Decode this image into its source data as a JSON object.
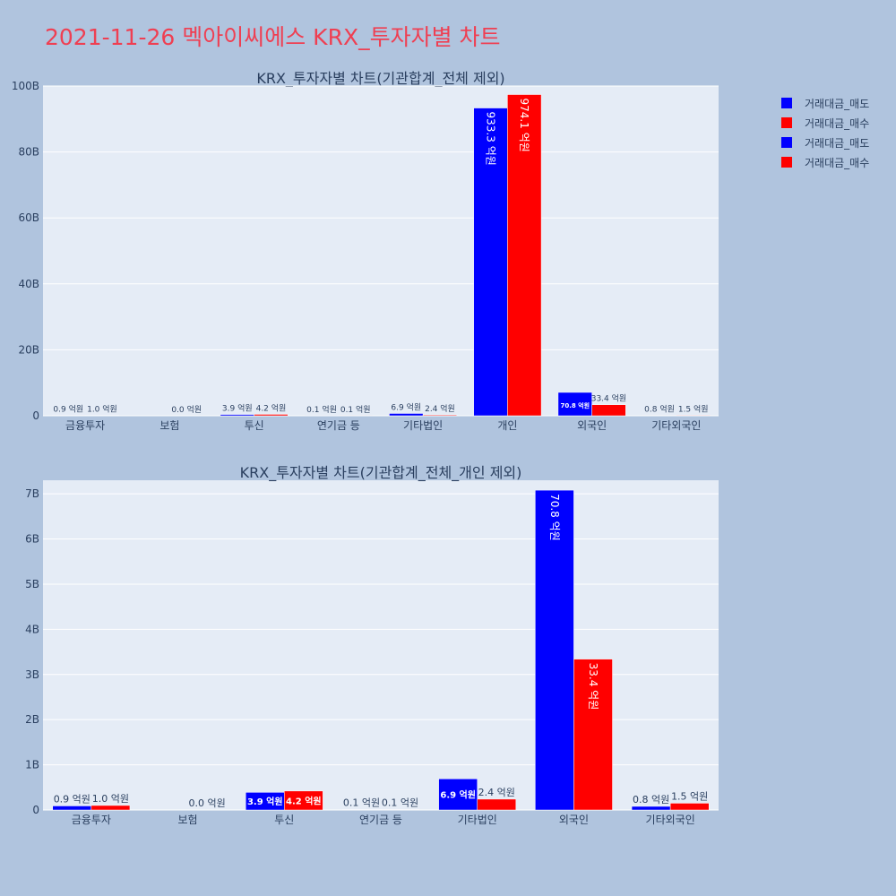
{
  "page": {
    "title": "2021-11-26 멕아이씨에스 KRX_투자자별 차트",
    "title_color": "#ef3f52",
    "background": "#b0c4de",
    "plot_background": "#e5ecf6"
  },
  "legend": {
    "placement": "top-right",
    "items": [
      {
        "label": "거래대금_매도",
        "color": "#0000ff"
      },
      {
        "label": "거래대금_매수",
        "color": "#ff0000"
      },
      {
        "label": "거래대금_매도",
        "color": "#0000ff"
      },
      {
        "label": "거래대금_매수",
        "color": "#ff0000"
      }
    ]
  },
  "chart_data": [
    {
      "type": "bar",
      "title": "KRX_투자자별 차트(기관합계_전체 제외)",
      "categories": [
        "금융투자",
        "보험",
        "투신",
        "연기금 등",
        "기타법인",
        "개인",
        "외국인",
        "기타외국인"
      ],
      "series": [
        {
          "name": "거래대금_매도",
          "color": "#0000ff",
          "values": [
            90000000,
            0,
            390000000,
            10000000,
            690000000,
            93330000000,
            7080000000,
            80000000
          ],
          "labels": [
            "0.9 억원",
            "",
            "3.9 억원",
            "0.1 억원",
            "6.9 억원",
            "933.3 억원",
            "70.8 억원",
            "0.8 억원"
          ]
        },
        {
          "name": "거래대금_매수",
          "color": "#ff0000",
          "values": [
            100000000,
            0,
            420000000,
            10000000,
            240000000,
            97410000000,
            3340000000,
            150000000
          ],
          "labels": [
            "1.0 억원",
            "0.0 억원",
            "4.2 억원",
            "0.1 억원",
            "2.4 억원",
            "974.1 억원",
            "33.4 억원",
            "1.5 억원"
          ]
        }
      ],
      "ylim": [
        0,
        100000000000
      ],
      "yticks": [
        0,
        20000000000,
        40000000000,
        60000000000,
        80000000000,
        100000000000
      ],
      "ytick_labels": [
        "0",
        "20B",
        "40B",
        "60B",
        "80B",
        "100B"
      ],
      "grid": true
    },
    {
      "type": "bar",
      "title": "KRX_투자자별 차트(기관합계_전체_개인 제외)",
      "categories": [
        "금융투자",
        "보험",
        "투신",
        "연기금 등",
        "기타법인",
        "외국인",
        "기타외국인"
      ],
      "series": [
        {
          "name": "거래대금_매도",
          "color": "#0000ff",
          "values": [
            90000000,
            0,
            390000000,
            10000000,
            690000000,
            7080000000,
            80000000
          ],
          "labels": [
            "0.9 억원",
            "",
            "3.9 억원",
            "0.1 억원",
            "6.9 억원",
            "70.8 억원",
            "0.8 억원"
          ]
        },
        {
          "name": "거래대금_매수",
          "color": "#ff0000",
          "values": [
            100000000,
            0,
            420000000,
            10000000,
            240000000,
            3340000000,
            150000000
          ],
          "labels": [
            "1.0 억원",
            "0.0 억원",
            "4.2 억원",
            "0.1 억원",
            "2.4 억원",
            "33.4 억원",
            "1.5 억원"
          ]
        }
      ],
      "ylim": [
        0,
        7300000000
      ],
      "yticks": [
        0,
        1000000000,
        2000000000,
        3000000000,
        4000000000,
        5000000000,
        6000000000,
        7000000000
      ],
      "ytick_labels": [
        "0",
        "1B",
        "2B",
        "3B",
        "4B",
        "5B",
        "6B",
        "7B"
      ],
      "grid": true
    }
  ]
}
